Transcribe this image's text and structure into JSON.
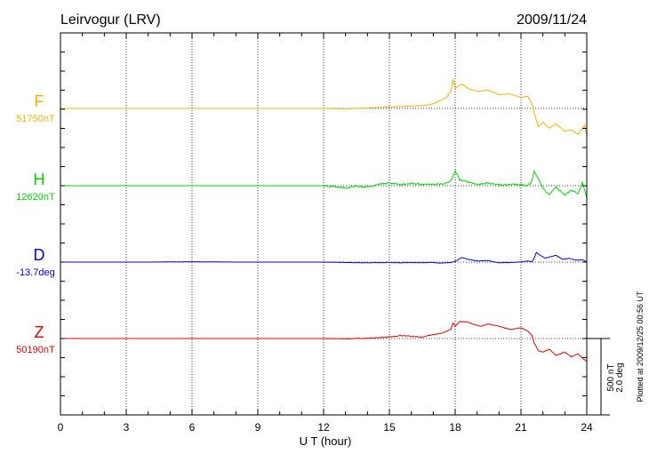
{
  "header": {
    "station": "Leirvogur (LRV)",
    "date": "2009/11/24"
  },
  "footer": {
    "plotted_note": "Plotted at 2009/12/25 00:56 UT"
  },
  "scale": {
    "line1": "500 nT",
    "line2": "2.0 deg"
  },
  "chart_data": {
    "type": "line",
    "xlabel": "U T (hour)",
    "xlim": [
      0,
      24
    ],
    "xticks": [
      "0",
      "3",
      "6",
      "9",
      "12",
      "15",
      "18",
      "21",
      "24"
    ],
    "grid": true,
    "series": [
      {
        "name": "F",
        "baseline_label": "51750nT",
        "color": "#f0b400",
        "x": [
          0,
          2,
          4,
          6,
          8,
          10,
          12,
          13,
          14,
          15,
          15.5,
          16,
          16.5,
          17,
          17.3,
          17.6,
          17.8,
          17.9,
          18,
          18.1,
          18.3,
          18.6,
          19,
          19.5,
          20,
          20.5,
          21,
          21.3,
          21.5,
          21.6,
          21.8,
          22,
          22.3,
          22.6,
          23,
          23.3,
          23.6,
          23.9,
          24
        ],
        "y": [
          51750,
          51750,
          51750,
          51750,
          51750,
          51750,
          51750,
          51748,
          51752,
          51760,
          51762,
          51766,
          51768,
          51780,
          51800,
          51820,
          51860,
          51940,
          51880,
          51890,
          51910,
          51880,
          51860,
          51870,
          51840,
          51845,
          51820,
          51830,
          51780,
          51720,
          51630,
          51660,
          51620,
          51650,
          51600,
          51610,
          51580,
          51640,
          51570
        ]
      },
      {
        "name": "H",
        "baseline_label": "12620nT",
        "color": "#00d800",
        "x": [
          0,
          2,
          4,
          6,
          8,
          10,
          12,
          12.5,
          13,
          13.5,
          14,
          14.5,
          15,
          15.5,
          16,
          16.5,
          17,
          17.5,
          17.8,
          18,
          18.2,
          18.5,
          19,
          19.5,
          20,
          20.5,
          21,
          21.3,
          21.5,
          21.6,
          21.8,
          22,
          22.3,
          22.6,
          23,
          23.3,
          23.6,
          23.8,
          24
        ],
        "y": [
          12620,
          12620,
          12620,
          12620,
          12620,
          12620,
          12620,
          12615,
          12605,
          12618,
          12610,
          12630,
          12640,
          12625,
          12635,
          12630,
          12628,
          12632,
          12650,
          12720,
          12660,
          12650,
          12625,
          12640,
          12625,
          12628,
          12625,
          12620,
          12650,
          12720,
          12660,
          12600,
          12560,
          12610,
          12560,
          12590,
          12570,
          12640,
          12540
        ],
        "noise": 6
      },
      {
        "name": "D",
        "baseline_label": "-13.7deg",
        "color": "#0000d8",
        "x": [
          0,
          2,
          4,
          6,
          8,
          10,
          12,
          13,
          14,
          15,
          15.5,
          16,
          16.5,
          17,
          17.3,
          17.5,
          17.8,
          18,
          18.3,
          18.6,
          19,
          19.5,
          20,
          20.5,
          21,
          21.3,
          21.5,
          21.6,
          21.7,
          21.9,
          22.1,
          22.4,
          22.6,
          22.9,
          23.2,
          23.5,
          23.8,
          24
        ],
        "y": [
          -13.7,
          -13.7,
          -13.7,
          -13.69,
          -13.7,
          -13.7,
          -13.7,
          -13.71,
          -13.72,
          -13.71,
          -13.72,
          -13.71,
          -13.715,
          -13.71,
          -13.73,
          -13.72,
          -13.71,
          -13.68,
          -13.58,
          -13.63,
          -13.67,
          -13.66,
          -13.72,
          -13.71,
          -13.7,
          -13.67,
          -13.69,
          -13.6,
          -13.45,
          -13.53,
          -13.6,
          -13.55,
          -13.52,
          -13.63,
          -13.6,
          -13.65,
          -13.64,
          -13.69
        ],
        "noise": 0.004
      },
      {
        "name": "Z",
        "baseline_label": "50190nT",
        "color": "#e00000",
        "x": [
          0,
          2,
          4,
          6,
          8,
          10,
          12,
          13,
          14,
          15,
          15.5,
          16,
          16.5,
          17,
          17.5,
          17.8,
          17.9,
          18,
          18.2,
          18.5,
          18.9,
          19.2,
          19.5,
          20,
          20.5,
          21,
          21.3,
          21.5,
          21.6,
          21.8,
          22,
          22.3,
          22.6,
          23,
          23.3,
          23.6,
          23.9,
          24
        ],
        "y": [
          50190,
          50190,
          50190,
          50190,
          50190,
          50190,
          50190,
          50188,
          50192,
          50200,
          50210,
          50205,
          50200,
          50215,
          50230,
          50250,
          50290,
          50270,
          50300,
          50300,
          50280,
          50270,
          50285,
          50270,
          50250,
          50260,
          50240,
          50210,
          50160,
          50110,
          50100,
          50120,
          50080,
          50100,
          50070,
          50090,
          50050,
          50040
        ],
        "noise": 2
      }
    ]
  }
}
